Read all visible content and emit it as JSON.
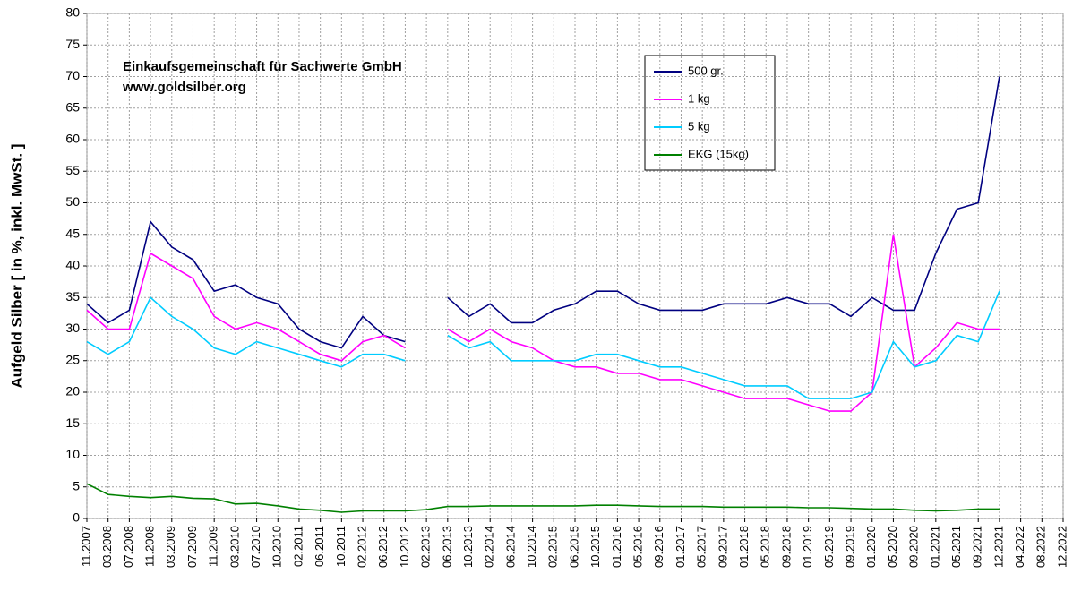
{
  "chart_data": {
    "type": "line",
    "ylabel": "Aufgeld Silber [ in %, inkl. MwSt. ]",
    "annotations": [
      "Einkaufsgemeinschaft für Sachwerte GmbH",
      "www.goldsilber.org"
    ],
    "categories": [
      "11.2007",
      "03.2008",
      "07.2008",
      "11.2008",
      "03.2009",
      "07.2009",
      "11.2009",
      "03.2010",
      "07.2010",
      "10.2010",
      "02.2011",
      "06.2011",
      "10.2011",
      "02.2012",
      "06.2012",
      "10.2012",
      "02.2013",
      "06.2013",
      "10.2013",
      "02.2014",
      "06.2014",
      "10.2014",
      "02.2015",
      "06.2015",
      "10.2015",
      "01.2016",
      "05.2016",
      "09.2016",
      "01.2017",
      "05.2017",
      "09.2017",
      "01.2018",
      "05.2018",
      "09.2018",
      "01.2019",
      "05.2019",
      "09.2019",
      "01.2020",
      "05.2020",
      "09.2020",
      "01.2021",
      "05.2021",
      "09.2021",
      "12.2021",
      "04.2022",
      "08.2022",
      "12.2022"
    ],
    "series": [
      {
        "name": "500 gr.",
        "color": "#000080",
        "values": [
          34,
          31,
          33,
          47,
          43,
          41,
          36,
          37,
          35,
          34,
          30,
          28,
          27,
          32,
          29,
          28,
          null,
          35,
          32,
          34,
          31,
          31,
          33,
          34,
          36,
          36,
          34,
          33,
          33,
          33,
          34,
          34,
          34,
          35,
          34,
          34,
          32,
          35,
          33,
          33,
          42,
          49,
          50,
          70,
          null,
          null,
          null
        ]
      },
      {
        "name": "1 kg",
        "color": "#ff00ff",
        "values": [
          33,
          30,
          30,
          42,
          40,
          38,
          32,
          30,
          31,
          30,
          28,
          26,
          25,
          28,
          29,
          27,
          null,
          30,
          28,
          30,
          28,
          27,
          25,
          24,
          24,
          23,
          23,
          22,
          22,
          21,
          20,
          19,
          19,
          19,
          18,
          17,
          17,
          20,
          45,
          24,
          27,
          31,
          30,
          30,
          null,
          null,
          null
        ]
      },
      {
        "name": "5 kg",
        "color": "#00ccff",
        "values": [
          28,
          26,
          28,
          35,
          32,
          30,
          27,
          26,
          28,
          27,
          26,
          25,
          24,
          26,
          26,
          25,
          null,
          29,
          27,
          28,
          25,
          25,
          25,
          25,
          26,
          26,
          25,
          24,
          24,
          23,
          22,
          21,
          21,
          21,
          19,
          19,
          19,
          20,
          28,
          24,
          25,
          29,
          28,
          36,
          null,
          null,
          null
        ]
      },
      {
        "name": "EKG (15kg)",
        "color": "#008000",
        "values": [
          5.5,
          3.8,
          3.5,
          3.3,
          3.5,
          3.2,
          3.1,
          2.3,
          2.4,
          2.0,
          1.5,
          1.3,
          1.0,
          1.2,
          1.2,
          1.2,
          1.4,
          1.9,
          1.9,
          2.0,
          2.0,
          2.0,
          2.0,
          2.0,
          2.1,
          2.1,
          2.0,
          1.9,
          1.9,
          1.9,
          1.8,
          1.8,
          1.8,
          1.8,
          1.7,
          1.7,
          1.6,
          1.5,
          1.5,
          1.3,
          1.2,
          1.3,
          1.5,
          1.5,
          null,
          null,
          null
        ]
      }
    ],
    "ylim": [
      0,
      80
    ],
    "yticks": [
      0,
      5,
      10,
      15,
      20,
      25,
      30,
      35,
      40,
      45,
      50,
      55,
      60,
      65,
      70,
      75,
      80
    ],
    "grid": true
  }
}
